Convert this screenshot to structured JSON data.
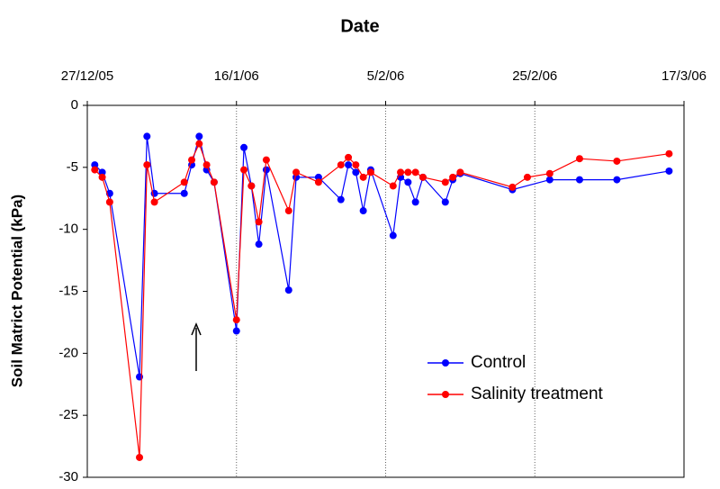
{
  "chart_data": {
    "type": "line",
    "title": "Date",
    "y_label": "Soil Matrict Potential (kPa)",
    "xlim": [
      "2005-12-27",
      "2006-03-17"
    ],
    "xticks": [
      {
        "value": "2005-12-27",
        "label": "27/12/05"
      },
      {
        "value": "2006-01-16",
        "label": "16/1/06"
      },
      {
        "value": "2006-02-05",
        "label": "5/2/06"
      },
      {
        "value": "2006-02-25",
        "label": "25/2/06"
      },
      {
        "value": "2006-03-17",
        "label": "17/3/06"
      }
    ],
    "ylim": [
      -30,
      0
    ],
    "yticks": [
      0,
      -5,
      -10,
      -15,
      -20,
      -25,
      -30
    ],
    "grid": "x",
    "legend": "lower right",
    "series": [
      {
        "name": "Control",
        "color": "#0000ff",
        "x": [
          "2005-12-28",
          "2005-12-29",
          "2005-12-30",
          "2006-01-03",
          "2006-01-04",
          "2006-01-05",
          "2006-01-09",
          "2006-01-10",
          "2006-01-11",
          "2006-01-12",
          "2006-01-13",
          "2006-01-16",
          "2006-01-17",
          "2006-01-18",
          "2006-01-19",
          "2006-01-20",
          "2006-01-23",
          "2006-01-24",
          "2006-01-27",
          "2006-01-30",
          "2006-01-31",
          "2006-02-01",
          "2006-02-02",
          "2006-02-03",
          "2006-02-06",
          "2006-02-07",
          "2006-02-08",
          "2006-02-09",
          "2006-02-10",
          "2006-02-13",
          "2006-02-14",
          "2006-02-15",
          "2006-02-22",
          "2006-02-27",
          "2006-03-03",
          "2006-03-08",
          "2006-03-15"
        ],
        "values": [
          -4.8,
          -5.4,
          -7.1,
          -21.9,
          -2.5,
          -7.1,
          -7.1,
          -4.8,
          -2.5,
          -5.2,
          -6.2,
          -18.2,
          -3.4,
          -6.5,
          -11.2,
          -5.2,
          -14.9,
          -5.8,
          -5.8,
          -7.6,
          -4.8,
          -5.4,
          -8.5,
          -5.2,
          -10.5,
          -5.8,
          -6.2,
          -7.8,
          -5.8,
          -7.8,
          -6.0,
          -5.5,
          -6.8,
          -6.0,
          -6.0,
          -6.0,
          -5.3
        ]
      },
      {
        "name": "Salinity treatment",
        "color": "#ff0000",
        "x": [
          "2005-12-28",
          "2005-12-29",
          "2005-12-30",
          "2006-01-03",
          "2006-01-04",
          "2006-01-05",
          "2006-01-09",
          "2006-01-10",
          "2006-01-11",
          "2006-01-12",
          "2006-01-13",
          "2006-01-16",
          "2006-01-17",
          "2006-01-18",
          "2006-01-19",
          "2006-01-20",
          "2006-01-23",
          "2006-01-24",
          "2006-01-27",
          "2006-01-30",
          "2006-01-31",
          "2006-02-01",
          "2006-02-02",
          "2006-02-03",
          "2006-02-06",
          "2006-02-07",
          "2006-02-08",
          "2006-02-09",
          "2006-02-10",
          "2006-02-13",
          "2006-02-14",
          "2006-02-15",
          "2006-02-22",
          "2006-02-24",
          "2006-02-27",
          "2006-03-03",
          "2006-03-08",
          "2006-03-15"
        ],
        "values": [
          -5.2,
          -5.8,
          -7.8,
          -28.4,
          -4.8,
          -7.8,
          -6.2,
          -4.4,
          -3.1,
          -4.8,
          -6.2,
          -17.3,
          -5.2,
          -6.5,
          -9.4,
          -4.4,
          -8.5,
          -5.4,
          -6.2,
          -4.8,
          -4.2,
          -4.8,
          -5.8,
          -5.4,
          -6.5,
          -5.4,
          -5.4,
          -5.4,
          -5.8,
          -6.2,
          -5.8,
          -5.4,
          -6.6,
          -5.8,
          -5.5,
          -4.3,
          -4.5,
          -3.9
        ]
      }
    ]
  }
}
